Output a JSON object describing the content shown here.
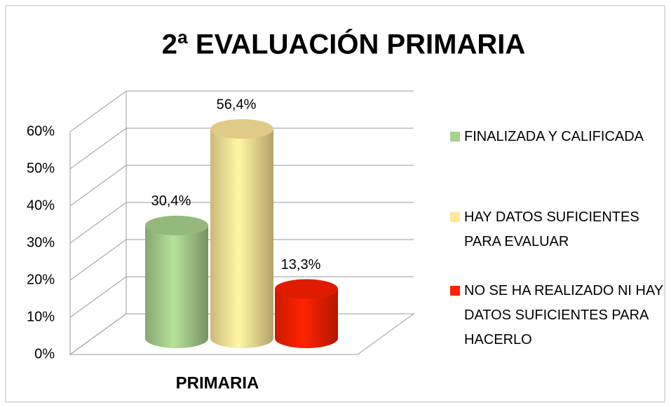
{
  "chart_data": {
    "type": "bar",
    "title": "2ª EVALUACIÓN PRIMARIA",
    "categories": [
      "PRIMARIA"
    ],
    "series": [
      {
        "name": "FINALIZADA Y CALIFICADA",
        "color": "#a9d18e",
        "values": [
          30.4
        ],
        "value_labels": [
          "30,4%"
        ]
      },
      {
        "name": "HAY DATOS SUFICIENTES PARA EVALUAR",
        "color": "#ffe699",
        "values": [
          56.4
        ],
        "value_labels": [
          "56,4%"
        ]
      },
      {
        "name": "NO SE HA REALIZADO NI HAY DATOS SUFICIENTES PARA HACERLO",
        "color": "#ff2000",
        "values": [
          13.3
        ],
        "value_labels": [
          "13,3%"
        ]
      }
    ],
    "ylim": [
      0,
      60
    ],
    "yticks": [
      {
        "value": 0,
        "label": "0%"
      },
      {
        "value": 10,
        "label": "10%"
      },
      {
        "value": 20,
        "label": "20%"
      },
      {
        "value": 30,
        "label": "30%"
      },
      {
        "value": 40,
        "label": "40%"
      },
      {
        "value": 50,
        "label": "50%"
      },
      {
        "value": 60,
        "label": "60%"
      }
    ],
    "grid": true,
    "legend": "right"
  }
}
